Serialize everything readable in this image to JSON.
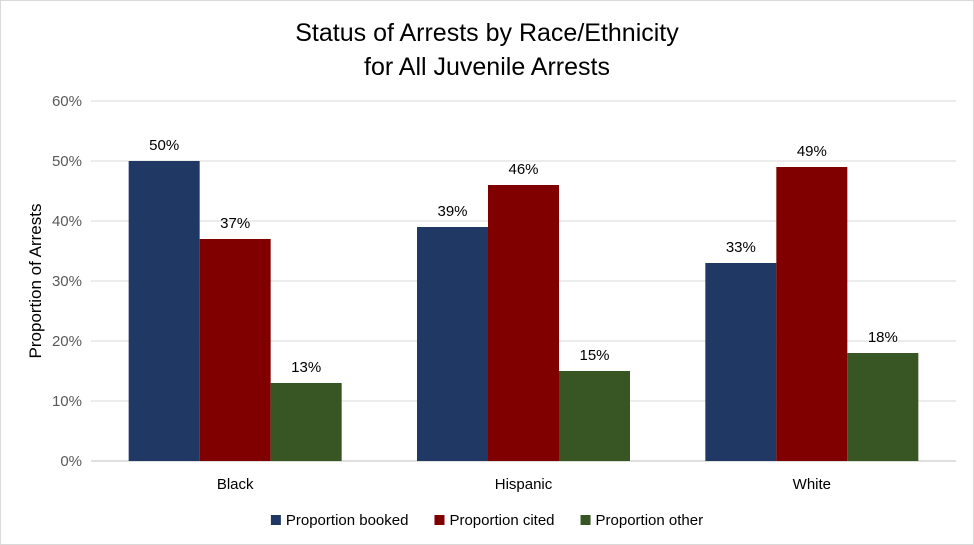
{
  "chart_data": {
    "type": "bar",
    "title_lines": [
      "Status of Arrests by Race/Ethnicity",
      "for All Juvenile Arrests"
    ],
    "xlabel": "",
    "ylabel": "Proportion of Arrests",
    "categories": [
      "Black",
      "Hispanic",
      "White"
    ],
    "y_ticks": [
      "0%",
      "10%",
      "20%",
      "30%",
      "40%",
      "50%",
      "60%"
    ],
    "ylim": [
      0,
      60
    ],
    "grid": true,
    "legend_position": "bottom",
    "series": [
      {
        "name": "Proportion booked",
        "color": "#203864",
        "values": [
          50,
          39,
          33
        ],
        "labels": [
          "50%",
          "39%",
          "33%"
        ]
      },
      {
        "name": "Proportion cited",
        "color": "#800000",
        "values": [
          37,
          46,
          49
        ],
        "labels": [
          "37%",
          "46%",
          "49%"
        ]
      },
      {
        "name": "Proportion other",
        "color": "#375623",
        "values": [
          13,
          15,
          18
        ],
        "labels": [
          "13%",
          "15%",
          "18%"
        ]
      }
    ]
  }
}
